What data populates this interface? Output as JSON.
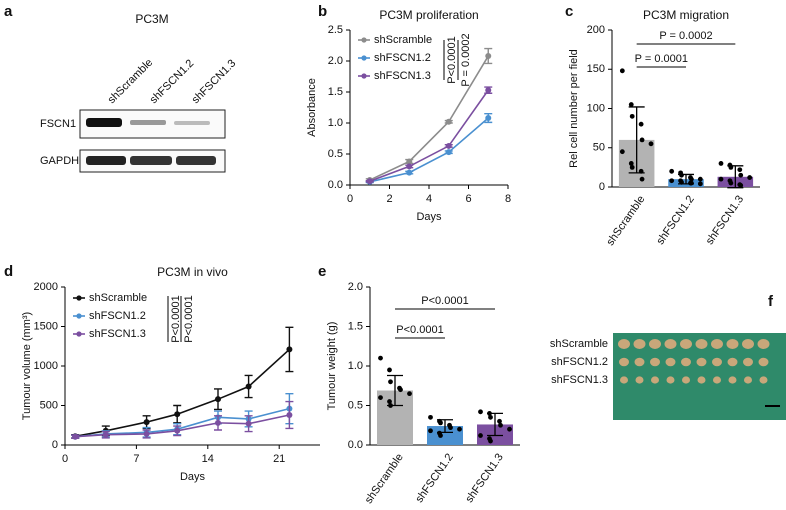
{
  "figure": {
    "panel_labels": [
      "a",
      "b",
      "c",
      "d",
      "e",
      "f"
    ],
    "blot": {
      "title": "PC3M",
      "lanes": [
        "shScramble",
        "shFSCN1.2",
        "shFSCN1.3"
      ],
      "rows": [
        "FSCN1",
        "GAPDH"
      ]
    },
    "photo": {
      "rows": [
        "shScramble",
        "shFSCN1.2",
        "shFSCN1.3"
      ]
    }
  },
  "chart_data": [
    {
      "type": "line",
      "title": "PC3M proliferation",
      "xlabel": "Days",
      "ylabel": "Absorbance",
      "x": [
        1,
        3,
        5,
        7
      ],
      "xlim": [
        0,
        8
      ],
      "xticks": [
        0,
        2,
        4,
        6,
        8
      ],
      "ylim": [
        0,
        2.5
      ],
      "yticks": [
        {
          "value": 0,
          "label": "0.0"
        },
        {
          "value": 0.5,
          "label": "0.5"
        },
        {
          "value": 1,
          "label": "1.0"
        },
        {
          "value": 1.5,
          "label": "1.5"
        },
        {
          "value": 2,
          "label": "2.0"
        },
        {
          "value": 2.5,
          "label": "2.5"
        }
      ],
      "series": [
        {
          "name": "shScramble",
          "color": "#8c8c8c",
          "values": [
            0.08,
            0.38,
            1.02,
            2.08
          ],
          "errors": [
            0.02,
            0.03,
            0.02,
            0.12
          ]
        },
        {
          "name": "shFSCN1.2",
          "color": "#4a90d0",
          "values": [
            0.05,
            0.2,
            0.53,
            1.08
          ],
          "errors": [
            0.01,
            0.02,
            0.02,
            0.07
          ]
        },
        {
          "name": "shFSCN1.3",
          "color": "#7b4fa0",
          "values": [
            0.06,
            0.3,
            0.63,
            1.53
          ],
          "errors": [
            0.01,
            0.02,
            0.02,
            0.05
          ]
        }
      ],
      "annotations": [
        "P<0.0001",
        "P = 0.0002"
      ]
    },
    {
      "type": "bar",
      "title": "PC3M migration",
      "ylabel": "Rel cell number per field",
      "categories": [
        "shScramble",
        "shFSCN1.2",
        "shFSCN1.3"
      ],
      "colors": [
        "#b3b3b3",
        "#4a90d0",
        "#7b4fa0"
      ],
      "values": [
        60,
        10,
        13
      ],
      "errors": [
        42,
        6,
        14
      ],
      "points": [
        [
          148,
          105,
          90,
          80,
          60,
          55,
          45,
          30,
          25,
          20,
          10
        ],
        [
          20,
          18,
          15,
          12,
          10,
          10,
          8,
          8,
          6,
          5,
          5,
          4
        ],
        [
          30,
          28,
          25,
          22,
          15,
          12,
          10,
          8,
          5,
          3,
          2
        ]
      ],
      "ylim": [
        0,
        200
      ],
      "yticks": [
        0,
        50,
        100,
        150,
        200
      ],
      "annotations": [
        "P = 0.0001",
        "P = 0.0002"
      ]
    },
    {
      "type": "line",
      "title": "PC3M in vivo",
      "xlabel": "Days",
      "ylabel": "Tumour volume (mm³)",
      "x": [
        1,
        4,
        8,
        11,
        15,
        18,
        22
      ],
      "xlim": [
        0,
        25
      ],
      "xticks": [
        0,
        7,
        14,
        21
      ],
      "ylim": [
        0,
        2000
      ],
      "yticks": [
        0,
        500,
        1000,
        1500,
        2000
      ],
      "series": [
        {
          "name": "shScramble",
          "color": "#111111",
          "values": [
            110,
            180,
            290,
            390,
            580,
            740,
            1210
          ],
          "errors": [
            20,
            60,
            80,
            110,
            130,
            140,
            280
          ]
        },
        {
          "name": "shFSCN1.2",
          "color": "#4a90d0",
          "values": [
            105,
            140,
            160,
            200,
            350,
            330,
            460
          ],
          "errors": [
            20,
            40,
            60,
            70,
            80,
            100,
            190
          ]
        },
        {
          "name": "shFSCN1.3",
          "color": "#7b4fa0",
          "values": [
            105,
            130,
            140,
            180,
            280,
            270,
            380
          ],
          "errors": [
            20,
            40,
            50,
            60,
            90,
            100,
            170
          ]
        }
      ],
      "annotations": [
        "P<0.0001",
        "P<0.0001"
      ]
    },
    {
      "type": "bar",
      "ylabel": "Tumour weight (g)",
      "categories": [
        "shScramble",
        "shFSCN1.2",
        "shFSCN1.3"
      ],
      "colors": [
        "#b3b3b3",
        "#4a90d0",
        "#7b4fa0"
      ],
      "values": [
        0.69,
        0.24,
        0.26
      ],
      "errors": [
        0.19,
        0.08,
        0.14
      ],
      "points": [
        [
          1.1,
          0.95,
          0.8,
          0.72,
          0.7,
          0.65,
          0.6,
          0.55,
          0.5
        ],
        [
          0.35,
          0.3,
          0.28,
          0.25,
          0.22,
          0.2,
          0.18,
          0.15,
          0.12
        ],
        [
          0.42,
          0.4,
          0.35,
          0.3,
          0.25,
          0.2,
          0.12,
          0.08,
          0.05
        ]
      ],
      "ylim": [
        0,
        2
      ],
      "yticks": [
        {
          "value": 0,
          "label": "0.0"
        },
        {
          "value": 0.5,
          "label": "0.5"
        },
        {
          "value": 1,
          "label": "1.0"
        },
        {
          "value": 1.5,
          "label": "1.5"
        },
        {
          "value": 2,
          "label": "2.0"
        }
      ],
      "annotations": [
        "P<0.0001",
        "P<0.0001"
      ]
    }
  ]
}
